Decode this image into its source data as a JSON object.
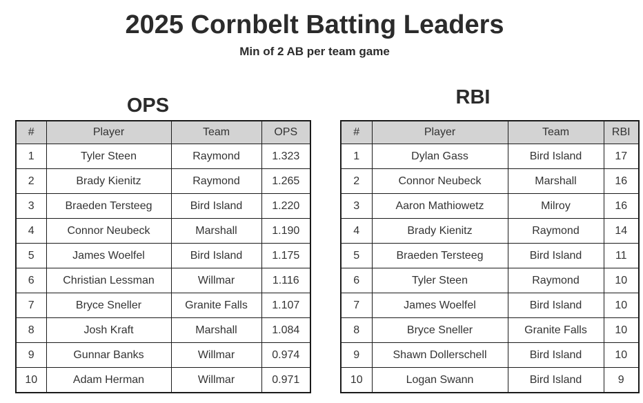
{
  "title": "2025 Cornbelt Batting Leaders",
  "subtitle": "Min of 2 AB per team game",
  "ops": {
    "title": "OPS",
    "headers": [
      "#",
      "Player",
      "Team",
      "OPS"
    ],
    "rows": [
      [
        "1",
        "Tyler Steen",
        "Raymond",
        "1.323"
      ],
      [
        "2",
        "Brady Kienitz",
        "Raymond",
        "1.265"
      ],
      [
        "3",
        "Braeden Tersteeg",
        "Bird Island",
        "1.220"
      ],
      [
        "4",
        "Connor Neubeck",
        "Marshall",
        "1.190"
      ],
      [
        "5",
        "James Woelfel",
        "Bird Island",
        "1.175"
      ],
      [
        "6",
        "Christian Lessman",
        "Willmar",
        "1.116"
      ],
      [
        "7",
        "Bryce Sneller",
        "Granite Falls",
        "1.107"
      ],
      [
        "8",
        "Josh Kraft",
        "Marshall",
        "1.084"
      ],
      [
        "9",
        "Gunnar Banks",
        "Willmar",
        "0.974"
      ],
      [
        "10",
        "Adam Herman",
        "Willmar",
        "0.971"
      ]
    ]
  },
  "rbi": {
    "title": "RBI",
    "headers": [
      "#",
      "Player",
      "Team",
      "RBI"
    ],
    "rows": [
      [
        "1",
        "Dylan Gass",
        "Bird Island",
        "17"
      ],
      [
        "2",
        "Connor Neubeck",
        "Marshall",
        "16"
      ],
      [
        "3",
        "Aaron Mathiowetz",
        "Milroy",
        "16"
      ],
      [
        "4",
        "Brady Kienitz",
        "Raymond",
        "14"
      ],
      [
        "5",
        "Braeden Tersteeg",
        "Bird Island",
        "11"
      ],
      [
        "6",
        "Tyler Steen",
        "Raymond",
        "10"
      ],
      [
        "7",
        "James Woelfel",
        "Bird Island",
        "10"
      ],
      [
        "8",
        "Bryce Sneller",
        "Granite Falls",
        "10"
      ],
      [
        "9",
        "Shawn Dollerschell",
        "Bird Island",
        "10"
      ],
      [
        "10",
        "Logan Swann",
        "Bird Island",
        "9"
      ]
    ]
  }
}
